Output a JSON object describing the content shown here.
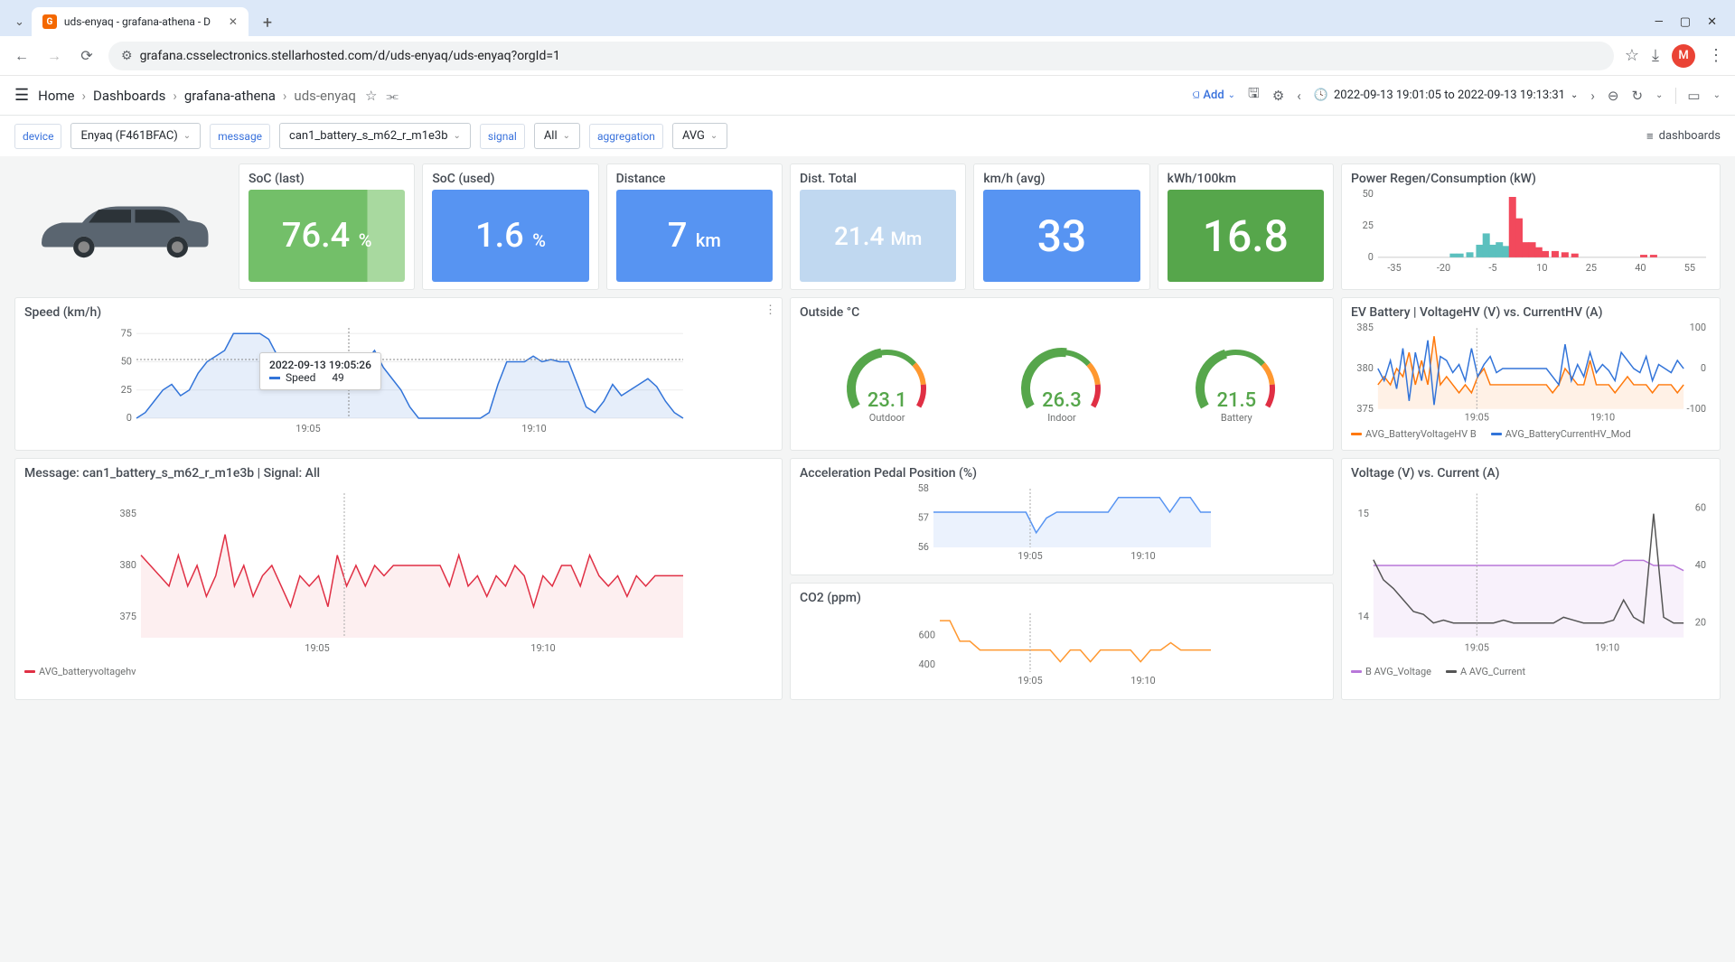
{
  "browser": {
    "tab_title": "uds-enyaq - grafana-athena - D",
    "url": "grafana.csselectronics.stellarhosted.com/d/uds-enyaq/uds-enyaq?orgId=1",
    "avatar_letter": "M"
  },
  "breadcrumb": {
    "home": "Home",
    "dashboards": "Dashboards",
    "folder": "grafana-athena",
    "current": "uds-enyaq"
  },
  "toolbar": {
    "add": "Add",
    "time_range": "2022-09-13 19:01:05 to 2022-09-13 19:13:31"
  },
  "variables": {
    "device_label": "device",
    "device_value": "Enyaq (F461BFAC)",
    "message_label": "message",
    "message_value": "can1_battery_s_m62_r_m1e3b",
    "signal_label": "signal",
    "signal_value": "All",
    "aggregation_label": "aggregation",
    "aggregation_value": "AVG",
    "dashboards_link": "dashboards"
  },
  "stats": {
    "soc_last": {
      "title": "SoC (last)",
      "value": "76.4",
      "unit": "%",
      "bg": "#73bf69",
      "gradient": true
    },
    "soc_used": {
      "title": "SoC (used)",
      "value": "1.6",
      "unit": "%",
      "bg": "#5794f2"
    },
    "distance": {
      "title": "Distance",
      "value": "7",
      "unit": "km",
      "bg": "#5794f2"
    },
    "dist_total": {
      "title": "Dist. Total",
      "value": "21.4",
      "unit": "Mm",
      "bg": "#c0d8f0",
      "fg": "#ffffff"
    },
    "kmh": {
      "title": "km/h (avg)",
      "value": "33",
      "unit": "",
      "bg": "#5794f2"
    },
    "kwh": {
      "title": "kWh/100km",
      "value": "16.8",
      "unit": "",
      "bg": "#56a64b"
    }
  },
  "power_regen": {
    "title": "Power Regen/Consumption (kW)",
    "y_ticks": [
      0,
      25,
      50
    ],
    "x_ticks": [
      -35,
      -20,
      -5,
      10,
      25,
      40,
      55
    ],
    "bars_regen": [
      {
        "x": -17,
        "h": 3
      },
      {
        "x": -15,
        "h": 3
      },
      {
        "x": -12,
        "h": 4
      },
      {
        "x": -9,
        "h": 10
      },
      {
        "x": -7,
        "h": 19
      },
      {
        "x": -5,
        "h": 10
      },
      {
        "x": -3,
        "h": 12
      },
      {
        "x": -1,
        "h": 9
      }
    ],
    "bars_cons": [
      {
        "x": 1,
        "h": 48
      },
      {
        "x": 3,
        "h": 31
      },
      {
        "x": 5,
        "h": 12
      },
      {
        "x": 7,
        "h": 12
      },
      {
        "x": 9,
        "h": 8
      },
      {
        "x": 11,
        "h": 5
      },
      {
        "x": 14,
        "h": 5
      },
      {
        "x": 17,
        "h": 4
      },
      {
        "x": 20,
        "h": 3
      },
      {
        "x": 41,
        "h": 2
      },
      {
        "x": 44,
        "h": 2
      }
    ],
    "color_regen": "#5bc0be",
    "color_cons": "#f2495c"
  },
  "speed": {
    "title": "Speed (km/h)",
    "y_ticks": [
      0,
      25,
      50,
      75
    ],
    "x_ticks": [
      "19:05",
      "19:10"
    ],
    "tooltip_time": "2022-09-13 19:05:26",
    "tooltip_label": "Speed",
    "tooltip_value": "49",
    "series": [
      0,
      5,
      15,
      25,
      30,
      20,
      25,
      40,
      50,
      55,
      60,
      75,
      75,
      75,
      75,
      70,
      55,
      50,
      50,
      50,
      50,
      50,
      50,
      55,
      40,
      30,
      50,
      60,
      45,
      35,
      25,
      10,
      0,
      0,
      0,
      0,
      0,
      0,
      0,
      0,
      5,
      30,
      50,
      50,
      50,
      55,
      50,
      52,
      50,
      50,
      30,
      10,
      5,
      15,
      30,
      20,
      25,
      30,
      35,
      28,
      15,
      5,
      0
    ],
    "color": "#3274d9"
  },
  "outside": {
    "title": "Outside °C",
    "gauges": [
      {
        "value": "23.1",
        "label": "Outdoor",
        "color": "#56a64b",
        "frac": 0.46
      },
      {
        "value": "26.3",
        "label": "Indoor",
        "color": "#56a64b",
        "frac": 0.53
      },
      {
        "value": "21.5",
        "label": "Battery",
        "color": "#56a64b",
        "frac": 0.43
      }
    ]
  },
  "battery_hv": {
    "title": "EV Battery | VoltageHV (V) vs. CurrentHV (A)",
    "y1_ticks": [
      375,
      380,
      385
    ],
    "y2_ticks": [
      -100,
      0,
      100
    ],
    "x_ticks": [
      "19:05",
      "19:10"
    ],
    "legend1": "AVG_BatteryVoltageHV B",
    "legend2": "AVG_BatteryCurrentHV_Mod",
    "color1": "#ff780a",
    "color2": "#3274d9",
    "series1": [
      378,
      379,
      378,
      380,
      379,
      382,
      378,
      381,
      378,
      384,
      378,
      379,
      378,
      377,
      378,
      377,
      379,
      380,
      378,
      378,
      378,
      378,
      378,
      378,
      378,
      378,
      378,
      378,
      377,
      378,
      380,
      379,
      378,
      378,
      381,
      378,
      378,
      378,
      377,
      378,
      379,
      378,
      378,
      378,
      377,
      378,
      378,
      378,
      377,
      378
    ],
    "series2": [
      0,
      -30,
      20,
      -50,
      50,
      -80,
      40,
      -30,
      70,
      -90,
      30,
      20,
      -10,
      10,
      -30,
      50,
      -20,
      10,
      30,
      -10,
      0,
      0,
      0,
      0,
      0,
      0,
      0,
      0,
      -20,
      -40,
      60,
      -30,
      10,
      -20,
      40,
      -10,
      10,
      -5,
      -30,
      40,
      20,
      0,
      -10,
      30,
      -30,
      10,
      0,
      -10,
      20,
      0
    ]
  },
  "msg_panel": {
    "title": "Message: can1_battery_s_m62_r_m1e3b | Signal: All",
    "y_ticks": [
      375,
      380,
      385
    ],
    "x_ticks": [
      "19:05",
      "19:10"
    ],
    "legend": "AVG_batteryvoltagehv",
    "color": "#e02f44",
    "series": [
      381,
      380,
      379,
      378,
      381,
      378,
      380,
      377,
      379,
      383,
      378,
      380,
      377,
      379,
      380,
      378,
      376,
      379,
      378,
      379,
      376,
      381,
      378,
      380,
      378,
      380,
      379,
      380,
      380,
      380,
      380,
      380,
      380,
      378,
      381,
      378,
      379,
      377,
      379,
      378,
      380,
      379,
      376,
      379,
      378,
      380,
      380,
      378,
      381,
      379,
      378,
      379,
      377,
      379,
      378,
      379,
      379,
      379,
      379
    ]
  },
  "accel": {
    "title": "Acceleration Pedal Position (%)",
    "y_ticks": [
      56,
      57,
      58
    ],
    "x_ticks": [
      "19:05",
      "19:10"
    ],
    "color": "#5794f2",
    "series": [
      57.2,
      57.2,
      57.2,
      57.2,
      57.2,
      57.2,
      57.2,
      57.2,
      57.2,
      57.2,
      56.5,
      57.0,
      57.2,
      57.2,
      57.2,
      57.2,
      57.2,
      57.2,
      57.7,
      57.7,
      57.7,
      57.7,
      57.7,
      57.2,
      57.7,
      57.7,
      57.2,
      57.2
    ]
  },
  "co2": {
    "title": "CO2 (ppm)",
    "y_ticks": [
      400,
      600
    ],
    "x_ticks": [
      "19:05",
      "19:10"
    ],
    "color": "#ff9830",
    "series": [
      700,
      700,
      560,
      560,
      500,
      500,
      500,
      500,
      500,
      500,
      500,
      500,
      420,
      500,
      500,
      420,
      500,
      500,
      500,
      500,
      420,
      500,
      500,
      550,
      500,
      500,
      500,
      500
    ]
  },
  "volt_curr": {
    "title": "Voltage (V) vs. Current (A)",
    "y1_ticks": [
      14,
      15
    ],
    "y2_ticks": [
      20,
      40,
      60
    ],
    "x_ticks": [
      "19:05",
      "19:10"
    ],
    "legend1": "B AVG_Voltage",
    "legend2": "A AVG_Current",
    "color1": "#b877d9",
    "color2": "#555555",
    "series1": [
      14.5,
      14.5,
      14.5,
      14.5,
      14.5,
      14.5,
      14.5,
      14.5,
      14.5,
      14.5,
      14.5,
      14.5,
      14.5,
      14.5,
      14.5,
      14.5,
      14.5,
      14.5,
      14.5,
      14.5,
      14.5,
      14.5,
      14.5,
      14.5,
      14.5,
      14.55,
      14.55,
      14.55,
      14.5,
      14.5,
      14.5,
      14.45
    ],
    "series2": [
      42,
      35,
      32,
      28,
      24,
      23,
      20,
      21,
      20,
      20,
      20,
      20,
      20,
      21,
      20,
      20,
      20,
      20,
      20,
      22,
      21,
      20,
      20,
      20,
      21,
      28,
      22,
      20,
      58,
      22,
      20,
      20
    ]
  }
}
